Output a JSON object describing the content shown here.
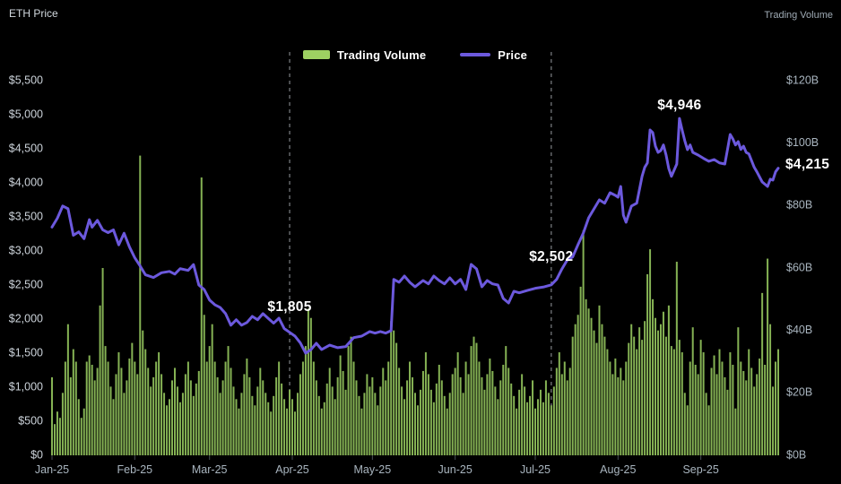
{
  "header": {
    "left_axis_title": "ETH Price",
    "right_axis_title": "Trading Volume"
  },
  "legend": [
    {
      "label": "Trading Volume",
      "type": "bar",
      "color": "#9ed162"
    },
    {
      "label": "Price",
      "type": "line",
      "color": "#6C59DD"
    }
  ],
  "colors": {
    "background": "#000000",
    "bar": "#85b254",
    "line": "#6C59DD",
    "dashed_marker": "#c9ced4",
    "annotation_text": "#ffffff",
    "left_tick_text": "#ccd3da",
    "right_tick_text": "#a9b5bf",
    "x_tick_text": "#a9b5bf",
    "month_tick_mark": "#474d54"
  },
  "chart_data": {
    "type": "mixed",
    "title": "",
    "x_axis": {
      "tick_labels": [
        "Jan-25",
        "Feb-25",
        "Mar-25",
        "Apr-25",
        "May-25",
        "Jun-25",
        "Jul-25",
        "Aug-25",
        "Sep-25"
      ],
      "tick_days": [
        0,
        31,
        59,
        90,
        120,
        151,
        181,
        212,
        243
      ],
      "total_days": 273,
      "grid": false
    },
    "left_axis": {
      "title": "ETH Price",
      "min": 0,
      "max": 5500,
      "step": 500,
      "tick_labels": [
        "$0",
        "$500",
        "$1,000",
        "$1,500",
        "$2,000",
        "$2,500",
        "$3,000",
        "$3,500",
        "$4,000",
        "$4,500",
        "$5,000",
        "$5,500"
      ]
    },
    "right_axis": {
      "title": "Trading Volume",
      "min": 0,
      "max": 120,
      "step": 20,
      "tick_labels": [
        "$0B",
        "$20B",
        "$40B",
        "$60B",
        "$80B",
        "$100B",
        "$120B"
      ]
    },
    "series": [
      {
        "name": "Trading Volume",
        "type": "bar",
        "axis": "right",
        "unit": "$B",
        "values": [
          25,
          10,
          14,
          12,
          20,
          30,
          42,
          25,
          34,
          30,
          18,
          12,
          15,
          30,
          32,
          29,
          24,
          28,
          48,
          60,
          35,
          30,
          22,
          18,
          26,
          33,
          28,
          20,
          24,
          31,
          36,
          30,
          26,
          96,
          40,
          34,
          28,
          22,
          25,
          30,
          33,
          26,
          20,
          16,
          18,
          24,
          28,
          22,
          17,
          20,
          26,
          30,
          24,
          19,
          23,
          27,
          89,
          45,
          30,
          35,
          42,
          30,
          25,
          20,
          24,
          30,
          35,
          28,
          22,
          18,
          15,
          20,
          26,
          31,
          25,
          19,
          16,
          22,
          28,
          24,
          20,
          17,
          14,
          19,
          25,
          30,
          23,
          18,
          15,
          21,
          18,
          14,
          20,
          26,
          30,
          35,
          47,
          44,
          30,
          24,
          19,
          15,
          17,
          23,
          28,
          22,
          18,
          25,
          32,
          27,
          21,
          35,
          38,
          30,
          24,
          19,
          15,
          20,
          26,
          22,
          25,
          20,
          16,
          22,
          28,
          24,
          30,
          43,
          40,
          36,
          28,
          22,
          18,
          24,
          30,
          25,
          20,
          16,
          21,
          27,
          33,
          26,
          21,
          17,
          23,
          29,
          24,
          19,
          15,
          20,
          26,
          28,
          33,
          25,
          20,
          30,
          26,
          35,
          38,
          36,
          30,
          25,
          21,
          26,
          31,
          27,
          22,
          18,
          24,
          29,
          35,
          28,
          23,
          19,
          15,
          21,
          26,
          22,
          17,
          19,
          24,
          15,
          18,
          21,
          17,
          24,
          20,
          16,
          22,
          28,
          33,
          26,
          30,
          24,
          28,
          38,
          42,
          45,
          54,
          72,
          50,
          47,
          44,
          40,
          36,
          48,
          42,
          38,
          34,
          30,
          26,
          31,
          25,
          28,
          24,
          30,
          36,
          42,
          38,
          34,
          41,
          37,
          43,
          58,
          66,
          50,
          44,
          40,
          42,
          46,
          38,
          48,
          35,
          34,
          62,
          37,
          33,
          20,
          16,
          30,
          41,
          29,
          26,
          37,
          33,
          20,
          16,
          28,
          32,
          26,
          34,
          30,
          25,
          21,
          33,
          29,
          15,
          41,
          30,
          27,
          24,
          34,
          28,
          22,
          26,
          31,
          52,
          29,
          63,
          42,
          22,
          30,
          34
        ]
      },
      {
        "name": "Price",
        "type": "line",
        "axis": "left",
        "unit": "$",
        "points": [
          [
            0,
            3350
          ],
          [
            2,
            3480
          ],
          [
            4,
            3660
          ],
          [
            6,
            3620
          ],
          [
            8,
            3230
          ],
          [
            10,
            3280
          ],
          [
            12,
            3180
          ],
          [
            14,
            3460
          ],
          [
            15,
            3350
          ],
          [
            17,
            3450
          ],
          [
            19,
            3310
          ],
          [
            21,
            3270
          ],
          [
            23,
            3310
          ],
          [
            25,
            3090
          ],
          [
            27,
            3260
          ],
          [
            29,
            3060
          ],
          [
            31,
            2900
          ],
          [
            33,
            2780
          ],
          [
            35,
            2650
          ],
          [
            38,
            2610
          ],
          [
            41,
            2680
          ],
          [
            44,
            2700
          ],
          [
            46,
            2660
          ],
          [
            48,
            2740
          ],
          [
            51,
            2715
          ],
          [
            53,
            2800
          ],
          [
            55,
            2500
          ],
          [
            57,
            2434
          ],
          [
            59,
            2280
          ],
          [
            61,
            2210
          ],
          [
            63,
            2170
          ],
          [
            65,
            2080
          ],
          [
            67,
            1910
          ],
          [
            69,
            1990
          ],
          [
            71,
            1910
          ],
          [
            73,
            1950
          ],
          [
            75,
            2040
          ],
          [
            77,
            1990
          ],
          [
            79,
            2080
          ],
          [
            81,
            2010
          ],
          [
            83,
            1940
          ],
          [
            85,
            2013
          ],
          [
            87,
            1860
          ],
          [
            89,
            1805
          ],
          [
            91,
            1750
          ],
          [
            93,
            1650
          ],
          [
            95,
            1500
          ],
          [
            97,
            1553
          ],
          [
            99,
            1645
          ],
          [
            101,
            1553
          ],
          [
            104,
            1618
          ],
          [
            107,
            1580
          ],
          [
            110,
            1596
          ],
          [
            113,
            1728
          ],
          [
            116,
            1750
          ],
          [
            119,
            1816
          ],
          [
            121,
            1794
          ],
          [
            123,
            1816
          ],
          [
            125,
            1794
          ],
          [
            127,
            1830
          ],
          [
            128,
            2583
          ],
          [
            130,
            2540
          ],
          [
            132,
            2632
          ],
          [
            134,
            2540
          ],
          [
            136,
            2474
          ],
          [
            139,
            2566
          ],
          [
            141,
            2517
          ],
          [
            143,
            2632
          ],
          [
            145,
            2566
          ],
          [
            147,
            2517
          ],
          [
            149,
            2606
          ],
          [
            151,
            2517
          ],
          [
            153,
            2583
          ],
          [
            155,
            2434
          ],
          [
            157,
            2803
          ],
          [
            159,
            2737
          ],
          [
            161,
            2474
          ],
          [
            163,
            2566
          ],
          [
            165,
            2517
          ],
          [
            167,
            2500
          ],
          [
            169,
            2303
          ],
          [
            171,
            2237
          ],
          [
            173,
            2408
          ],
          [
            175,
            2386
          ],
          [
            178,
            2420
          ],
          [
            181,
            2452
          ],
          [
            184,
            2470
          ],
          [
            187,
            2502
          ],
          [
            189,
            2583
          ],
          [
            191,
            2737
          ],
          [
            193,
            2868
          ],
          [
            195,
            2912
          ],
          [
            197,
            3092
          ],
          [
            199,
            3263
          ],
          [
            201,
            3487
          ],
          [
            203,
            3618
          ],
          [
            205,
            3750
          ],
          [
            207,
            3701
          ],
          [
            209,
            3855
          ],
          [
            211,
            3816
          ],
          [
            212,
            3789
          ],
          [
            213,
            3947
          ],
          [
            214,
            3526
          ],
          [
            215,
            3421
          ],
          [
            217,
            3658
          ],
          [
            219,
            3701
          ],
          [
            221,
            4096
          ],
          [
            222,
            4228
          ],
          [
            223,
            4293
          ],
          [
            224,
            4776
          ],
          [
            225,
            4737
          ],
          [
            226,
            4539
          ],
          [
            227,
            4447
          ],
          [
            228,
            4474
          ],
          [
            229,
            4556
          ],
          [
            230,
            4408
          ],
          [
            231,
            4210
          ],
          [
            232,
            4096
          ],
          [
            234,
            4276
          ],
          [
            235,
            4946
          ],
          [
            236,
            4776
          ],
          [
            237,
            4618
          ],
          [
            238,
            4487
          ],
          [
            239,
            4556
          ],
          [
            240,
            4447
          ],
          [
            242,
            4408
          ],
          [
            244,
            4360
          ],
          [
            246,
            4316
          ],
          [
            248,
            4342
          ],
          [
            250,
            4293
          ],
          [
            252,
            4276
          ],
          [
            253,
            4490
          ],
          [
            254,
            4711
          ],
          [
            255,
            4645
          ],
          [
            256,
            4556
          ],
          [
            257,
            4605
          ],
          [
            258,
            4490
          ],
          [
            259,
            4539
          ],
          [
            260,
            4447
          ],
          [
            261,
            4425
          ],
          [
            263,
            4228
          ],
          [
            264,
            4162
          ],
          [
            266,
            4013
          ],
          [
            268,
            3947
          ],
          [
            269,
            4053
          ],
          [
            270,
            4040
          ],
          [
            271,
            4162
          ],
          [
            272,
            4215
          ]
        ]
      }
    ],
    "annotations": [
      {
        "text": "$1,805",
        "day": 89,
        "price": 1805,
        "dashed_line": true,
        "label_dy": -28,
        "anchor": "middle"
      },
      {
        "text": "$2,502",
        "day": 187,
        "price": 2502,
        "dashed_line": true,
        "label_dy": -31,
        "anchor": "middle"
      },
      {
        "text": "$4,946",
        "day": 235,
        "price": 4946,
        "dashed_line": false,
        "label_dy": -14,
        "anchor": "middle"
      },
      {
        "text": "$4,215",
        "day": 272,
        "price": 4215,
        "dashed_line": false,
        "label_dy": -4,
        "anchor": "start",
        "label_dx": 8
      }
    ]
  }
}
